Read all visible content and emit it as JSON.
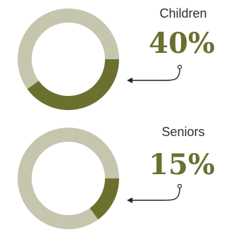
{
  "chart_data": [
    {
      "type": "donut",
      "category": "Children",
      "value_label": "40%",
      "value": 40
    },
    {
      "type": "donut",
      "category": "Seniors",
      "value_label": "15%",
      "value": 15
    }
  ],
  "colors": {
    "fill": "#6b702f",
    "track": "#c5c6ad"
  }
}
